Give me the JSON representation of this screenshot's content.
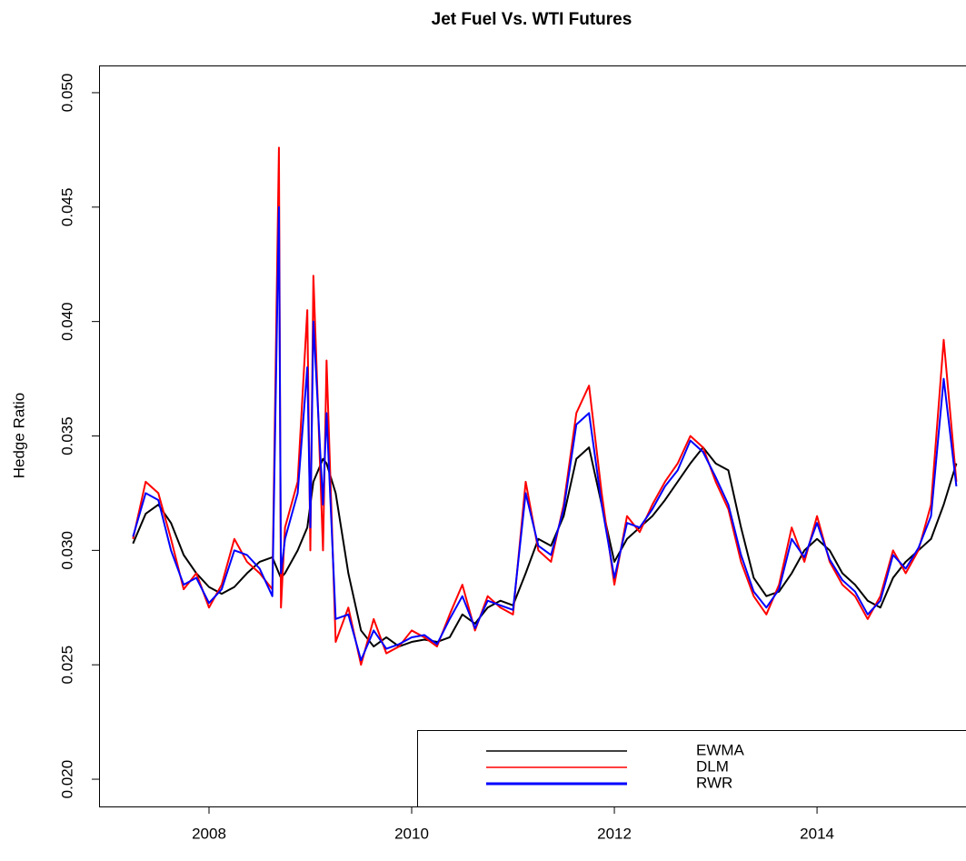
{
  "chart_data": {
    "type": "line",
    "title": "Jet Fuel Vs. WTI Futures",
    "y_label": "Hedge Ratio",
    "x": [
      2007.25,
      2007.375,
      2007.5,
      2007.625,
      2007.75,
      2007.875,
      2008.0,
      2008.125,
      2008.25,
      2008.375,
      2008.5,
      2008.625,
      2008.69,
      2008.71,
      2008.75,
      2008.875,
      2008.97,
      2009.0,
      2009.03,
      2009.125,
      2009.16,
      2009.25,
      2009.375,
      2009.5,
      2009.625,
      2009.75,
      2009.875,
      2010.0,
      2010.125,
      2010.25,
      2010.375,
      2010.5,
      2010.625,
      2010.75,
      2010.875,
      2011.0,
      2011.125,
      2011.25,
      2011.375,
      2011.5,
      2011.625,
      2011.75,
      2011.875,
      2012.0,
      2012.125,
      2012.25,
      2012.375,
      2012.5,
      2012.625,
      2012.75,
      2012.875,
      2013.0,
      2013.125,
      2013.25,
      2013.375,
      2013.5,
      2013.625,
      2013.75,
      2013.875,
      2014.0,
      2014.125,
      2014.25,
      2014.375,
      2014.5,
      2014.625,
      2014.75,
      2014.875,
      2015.0,
      2015.125,
      2015.25,
      2015.375
    ],
    "series": [
      {
        "name": "EWMA",
        "color": "#000000",
        "values": [
          0.0303,
          0.0316,
          0.032,
          0.0312,
          0.0298,
          0.029,
          0.0284,
          0.0281,
          0.0284,
          0.029,
          0.0295,
          0.0297,
          0.029,
          0.0288,
          0.029,
          0.03,
          0.031,
          0.032,
          0.033,
          0.034,
          0.0338,
          0.0325,
          0.029,
          0.0265,
          0.0258,
          0.0262,
          0.0258,
          0.026,
          0.0261,
          0.026,
          0.0262,
          0.0272,
          0.0268,
          0.0275,
          0.0278,
          0.0276,
          0.029,
          0.0305,
          0.0302,
          0.0315,
          0.034,
          0.0345,
          0.032,
          0.0295,
          0.0305,
          0.031,
          0.0315,
          0.0322,
          0.033,
          0.0338,
          0.0345,
          0.0338,
          0.0335,
          0.031,
          0.0288,
          0.028,
          0.0282,
          0.029,
          0.03,
          0.0305,
          0.03,
          0.029,
          0.0285,
          0.0278,
          0.0275,
          0.0288,
          0.0295,
          0.03,
          0.0305,
          0.032,
          0.0338
        ]
      },
      {
        "name": "DLM",
        "color": "#ff0000",
        "values": [
          0.0305,
          0.033,
          0.0325,
          0.0305,
          0.0283,
          0.029,
          0.0275,
          0.0285,
          0.0305,
          0.0295,
          0.029,
          0.0283,
          0.0476,
          0.0275,
          0.031,
          0.033,
          0.0405,
          0.03,
          0.042,
          0.03,
          0.0383,
          0.026,
          0.0275,
          0.025,
          0.027,
          0.0255,
          0.0258,
          0.0265,
          0.0262,
          0.0258,
          0.0272,
          0.0285,
          0.0265,
          0.028,
          0.0275,
          0.0272,
          0.033,
          0.03,
          0.0295,
          0.032,
          0.036,
          0.0372,
          0.0325,
          0.0285,
          0.0315,
          0.0308,
          0.032,
          0.033,
          0.0338,
          0.035,
          0.0345,
          0.033,
          0.0318,
          0.0295,
          0.028,
          0.0272,
          0.0285,
          0.031,
          0.0295,
          0.0315,
          0.0295,
          0.0285,
          0.028,
          0.027,
          0.028,
          0.03,
          0.029,
          0.03,
          0.032,
          0.0392,
          0.033
        ]
      },
      {
        "name": "RWR",
        "color": "#0000ff",
        "values": [
          0.0306,
          0.0325,
          0.0322,
          0.03,
          0.0285,
          0.0288,
          0.0277,
          0.0283,
          0.03,
          0.0298,
          0.0292,
          0.028,
          0.045,
          0.029,
          0.0305,
          0.0325,
          0.038,
          0.031,
          0.04,
          0.032,
          0.036,
          0.027,
          0.0272,
          0.0252,
          0.0265,
          0.0257,
          0.0259,
          0.0262,
          0.0263,
          0.0259,
          0.027,
          0.028,
          0.0266,
          0.0278,
          0.0276,
          0.0274,
          0.0325,
          0.0302,
          0.0298,
          0.0318,
          0.0355,
          0.036,
          0.032,
          0.0288,
          0.0312,
          0.031,
          0.0318,
          0.0328,
          0.0335,
          0.0348,
          0.0343,
          0.0332,
          0.032,
          0.0298,
          0.0282,
          0.0275,
          0.0283,
          0.0305,
          0.0297,
          0.0312,
          0.0296,
          0.0287,
          0.0282,
          0.0272,
          0.0278,
          0.0298,
          0.0292,
          0.0301,
          0.0315,
          0.0375,
          0.0328
        ]
      }
    ],
    "xlim": [
      2006.915,
      2015.47
    ],
    "xticks": [
      2008,
      2010,
      2012,
      2014
    ],
    "ylim": [
      0.01881,
      0.05119
    ],
    "yticks": [
      {
        "value": 0.02,
        "label": "0.020"
      },
      0.025,
      {
        "value": 0.03,
        "label": "0.030"
      },
      0.035,
      {
        "value": 0.04,
        "label": "0.040"
      },
      0.045,
      {
        "value": 0.05,
        "label": "0.050"
      }
    ],
    "legend": "bottom-right"
  }
}
